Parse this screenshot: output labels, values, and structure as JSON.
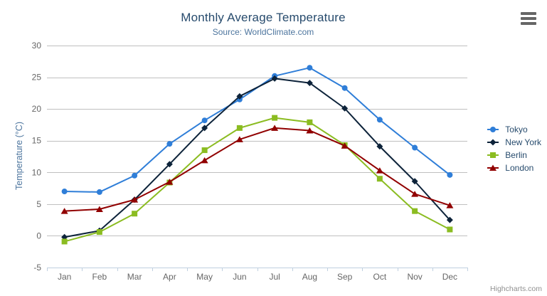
{
  "header": {
    "title": "Monthly Average Temperature",
    "subtitle": "Source: WorldClimate.com"
  },
  "credits_label": "Highcharts.com",
  "export_menu_icon": "hamburger-menu-icon",
  "colors": {
    "title": "#274b6d",
    "subtitle": "#4d759e",
    "axis_title": "#4d759e",
    "tick_label": "#666666",
    "grid_line": "#c0c0c0",
    "axis_line": "#c0d0e0",
    "legend_text": "#274b6d",
    "credits": "#909090",
    "background": "#ffffff"
  },
  "chart_data": {
    "type": "line",
    "title": "Monthly Average Temperature",
    "subtitle": "Source: WorldClimate.com",
    "xlabel": "",
    "ylabel": "Temperature (°C)",
    "ylim": [
      -5,
      30
    ],
    "ytick_step": 5,
    "grid": true,
    "legend_position": "right",
    "categories": [
      "Jan",
      "Feb",
      "Mar",
      "Apr",
      "May",
      "Jun",
      "Jul",
      "Aug",
      "Sep",
      "Oct",
      "Nov",
      "Dec"
    ],
    "series": [
      {
        "name": "Tokyo",
        "color": "#2f7ed8",
        "marker": "circle",
        "values": [
          7.0,
          6.9,
          9.5,
          14.5,
          18.2,
          21.5,
          25.2,
          26.5,
          23.3,
          18.3,
          13.9,
          9.6
        ]
      },
      {
        "name": "New York",
        "color": "#0d233a",
        "marker": "diamond",
        "values": [
          -0.2,
          0.8,
          5.7,
          11.3,
          17.0,
          22.0,
          24.8,
          24.1,
          20.1,
          14.1,
          8.6,
          2.5
        ]
      },
      {
        "name": "Berlin",
        "color": "#8bbc21",
        "marker": "square",
        "values": [
          -0.9,
          0.6,
          3.5,
          8.4,
          13.5,
          17.0,
          18.6,
          17.9,
          14.3,
          9.0,
          3.9,
          1.0
        ]
      },
      {
        "name": "London",
        "color": "#910000",
        "marker": "triangle",
        "values": [
          3.9,
          4.2,
          5.7,
          8.5,
          11.9,
          15.2,
          17.0,
          16.6,
          14.2,
          10.3,
          6.6,
          4.8
        ]
      }
    ]
  }
}
